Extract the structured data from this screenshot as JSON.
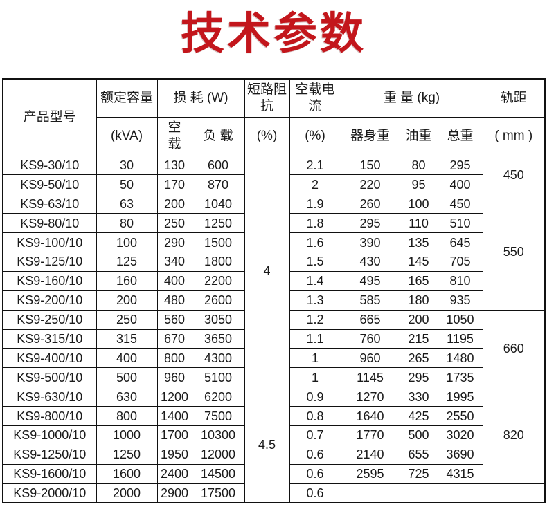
{
  "page": {
    "title": "技术参数",
    "title_color": "#c3161c"
  },
  "table": {
    "header": {
      "model": "产品型号",
      "capacity": "额定容量",
      "capacity_unit": "(kVA)",
      "loss": "损 耗 (W)",
      "loss_noload": "空\n载",
      "loss_load": "负 载",
      "impedance": "短路阻\n抗",
      "impedance_unit": "(%)",
      "noload_current": "空载电\n流",
      "noload_current_unit": "(%)",
      "weight": "重 量 (kg)",
      "weight_body": "器身重",
      "weight_oil": "油重",
      "weight_total": "总重",
      "gauge": "轨距",
      "gauge_unit": "( mm )"
    },
    "impedance_groups": [
      {
        "value": "4",
        "rows": 12
      },
      {
        "value": "4.5",
        "rows": 6
      }
    ],
    "gauge_groups": [
      {
        "value": "450",
        "rows": 2
      },
      {
        "value": "550",
        "rows": 6
      },
      {
        "value": "660",
        "rows": 4
      },
      {
        "value": "820",
        "rows": 5
      },
      {
        "value": "",
        "rows": 1
      }
    ],
    "rows": [
      {
        "model": "KS9-30/10",
        "kva": "30",
        "noload_loss": "130",
        "load_loss": "600",
        "noload_current": "2.1",
        "body_weight": "150",
        "oil_weight": "80",
        "total_weight": "295"
      },
      {
        "model": "KS9-50/10",
        "kva": "50",
        "noload_loss": "170",
        "load_loss": "870",
        "noload_current": "2",
        "body_weight": "220",
        "oil_weight": "95",
        "total_weight": "400"
      },
      {
        "model": "KS9-63/10",
        "kva": "63",
        "noload_loss": "200",
        "load_loss": "1040",
        "noload_current": "1.9",
        "body_weight": "260",
        "oil_weight": "100",
        "total_weight": "450"
      },
      {
        "model": "KS9-80/10",
        "kva": "80",
        "noload_loss": "250",
        "load_loss": "1250",
        "noload_current": "1.8",
        "body_weight": "295",
        "oil_weight": "110",
        "total_weight": "510"
      },
      {
        "model": "KS9-100/10",
        "kva": "100",
        "noload_loss": "290",
        "load_loss": "1500",
        "noload_current": "1.6",
        "body_weight": "390",
        "oil_weight": "135",
        "total_weight": "645"
      },
      {
        "model": "KS9-125/10",
        "kva": "125",
        "noload_loss": "340",
        "load_loss": "1800",
        "noload_current": "1.5",
        "body_weight": "430",
        "oil_weight": "145",
        "total_weight": "705"
      },
      {
        "model": "KS9-160/10",
        "kva": "160",
        "noload_loss": "400",
        "load_loss": "2200",
        "noload_current": "1.4",
        "body_weight": "495",
        "oil_weight": "165",
        "total_weight": "810"
      },
      {
        "model": "KS9-200/10",
        "kva": "200",
        "noload_loss": "480",
        "load_loss": "2600",
        "noload_current": "1.3",
        "body_weight": "585",
        "oil_weight": "180",
        "total_weight": "935"
      },
      {
        "model": "KS9-250/10",
        "kva": "250",
        "noload_loss": "560",
        "load_loss": "3050",
        "noload_current": "1.2",
        "body_weight": "665",
        "oil_weight": "200",
        "total_weight": "1050"
      },
      {
        "model": "KS9-315/10",
        "kva": "315",
        "noload_loss": "670",
        "load_loss": "3650",
        "noload_current": "1.1",
        "body_weight": "760",
        "oil_weight": "215",
        "total_weight": "1195"
      },
      {
        "model": "KS9-400/10",
        "kva": "400",
        "noload_loss": "800",
        "load_loss": "4300",
        "noload_current": "1",
        "body_weight": "960",
        "oil_weight": "265",
        "total_weight": "1480"
      },
      {
        "model": "KS9-500/10",
        "kva": "500",
        "noload_loss": "960",
        "load_loss": "5100",
        "noload_current": "1",
        "body_weight": "1145",
        "oil_weight": "295",
        "total_weight": "1735"
      },
      {
        "model": "KS9-630/10",
        "kva": "630",
        "noload_loss": "1200",
        "load_loss": "6200",
        "noload_current": "0.9",
        "body_weight": "1270",
        "oil_weight": "330",
        "total_weight": "1995"
      },
      {
        "model": "KS9-800/10",
        "kva": "800",
        "noload_loss": "1400",
        "load_loss": "7500",
        "noload_current": "0.8",
        "body_weight": "1640",
        "oil_weight": "425",
        "total_weight": "2550"
      },
      {
        "model": "KS9-1000/10",
        "kva": "1000",
        "noload_loss": "1700",
        "load_loss": "10300",
        "noload_current": "0.7",
        "body_weight": "1770",
        "oil_weight": "500",
        "total_weight": "3020"
      },
      {
        "model": "KS9-1250/10",
        "kva": "1250",
        "noload_loss": "1950",
        "load_loss": "12000",
        "noload_current": "0.6",
        "body_weight": "2140",
        "oil_weight": "655",
        "total_weight": "3690"
      },
      {
        "model": "KS9-1600/10",
        "kva": "1600",
        "noload_loss": "2400",
        "load_loss": "14500",
        "noload_current": "0.6",
        "body_weight": "2595",
        "oil_weight": "725",
        "total_weight": "4315"
      },
      {
        "model": "KS9-2000/10",
        "kva": "2000",
        "noload_loss": "2900",
        "load_loss": "17500",
        "noload_current": "0.6",
        "body_weight": "",
        "oil_weight": "",
        "total_weight": ""
      }
    ]
  }
}
